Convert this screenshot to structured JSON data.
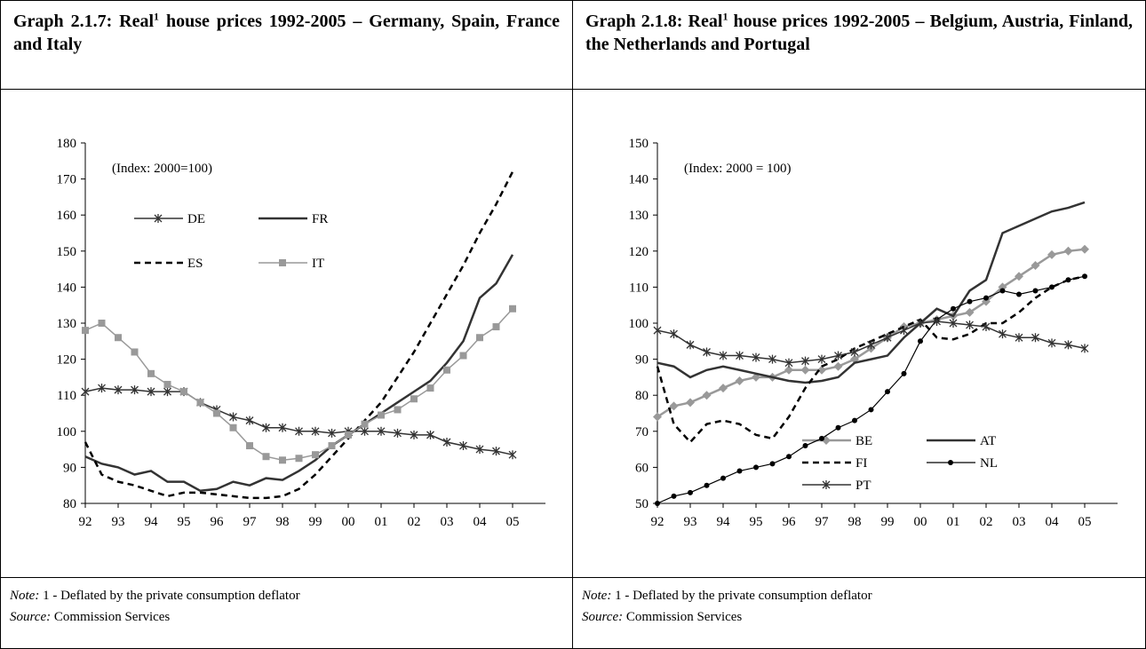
{
  "panels": [
    {
      "title": "Graph 2.1.7: Real",
      "title_sup": "1",
      "title_rest": " house prices 1992-2005 – Germany, Spain, France and Italy",
      "note_label": "Note:",
      "note": " 1 - Deflated by the private consumption deflator",
      "source_label": "Source:",
      "source": " Commission Services"
    },
    {
      "title": "Graph 2.1.8: Real",
      "title_sup": "1",
      "title_rest": " house prices 1992-2005 – Belgium, Austria, Finland, the Netherlands and Portugal",
      "note_label": "Note:",
      "note": " 1 - Deflated by the private consumption deflator",
      "source_label": "Source:",
      "source": " Commission Services"
    }
  ],
  "chart_data": [
    {
      "type": "line",
      "annotation": "(Index: 2000=100)",
      "legend": "upper left",
      "x": [
        1992,
        1992.5,
        1993,
        1993.5,
        1994,
        1994.5,
        1995,
        1995.5,
        1996,
        1996.5,
        1997,
        1997.5,
        1998,
        1998.5,
        1999,
        1999.5,
        2000,
        2000.5,
        2001,
        2001.5,
        2002,
        2002.5,
        2003,
        2003.5,
        2004,
        2004.5,
        2005
      ],
      "xlim": [
        1992,
        2006
      ],
      "xticks": [
        {
          "value": 1992,
          "label": "92"
        },
        {
          "value": 1993,
          "label": "93"
        },
        {
          "value": 1994,
          "label": "94"
        },
        {
          "value": 1995,
          "label": "95"
        },
        {
          "value": 1996,
          "label": "96"
        },
        {
          "value": 1997,
          "label": "97"
        },
        {
          "value": 1998,
          "label": "98"
        },
        {
          "value": 1999,
          "label": "99"
        },
        {
          "value": 2000,
          "label": "00"
        },
        {
          "value": 2001,
          "label": "01"
        },
        {
          "value": 2002,
          "label": "02"
        },
        {
          "value": 2003,
          "label": "03"
        },
        {
          "value": 2004,
          "label": "04"
        },
        {
          "value": 2005,
          "label": "05"
        }
      ],
      "ylim": [
        80,
        180
      ],
      "yticks": [
        80,
        90,
        100,
        110,
        120,
        130,
        140,
        150,
        160,
        170,
        180
      ],
      "series": [
        {
          "name": "DE",
          "color": "#333333",
          "width": 1.5,
          "marker": "asterisk",
          "values": [
            111,
            112,
            111.5,
            111.5,
            111,
            111,
            111,
            108,
            106,
            104,
            103,
            101,
            101,
            100,
            100,
            99.5,
            100,
            100,
            100,
            99.5,
            99,
            99,
            97,
            96,
            95,
            94.5,
            93.5
          ]
        },
        {
          "name": "FR",
          "color": "#333333",
          "width": 2.5,
          "marker": null,
          "values": [
            93,
            91,
            90,
            88,
            89,
            86,
            86,
            83.5,
            84,
            86,
            85,
            87,
            86.5,
            89,
            92,
            96,
            99,
            102,
            105,
            108,
            111,
            114,
            119,
            125,
            137,
            141,
            149
          ]
        },
        {
          "name": "ES",
          "color": "#000000",
          "width": 2.5,
          "dash": true,
          "marker": null,
          "values": [
            97,
            88,
            86,
            85,
            83.5,
            82,
            83,
            83,
            82.5,
            82,
            81.5,
            81.5,
            82,
            84,
            88,
            93,
            98,
            103,
            108,
            115,
            122,
            130,
            138,
            146,
            155,
            163,
            172
          ]
        },
        {
          "name": "IT",
          "color": "#999999",
          "width": 1.5,
          "marker": "square",
          "values": [
            128,
            130,
            126,
            122,
            116,
            113,
            111,
            108,
            105,
            101,
            96,
            93,
            92,
            92.5,
            93.5,
            96,
            99,
            102,
            104.5,
            106,
            109,
            112,
            117,
            121,
            126,
            129,
            134
          ]
        }
      ]
    },
    {
      "type": "line",
      "annotation": "(Index: 2000 = 100)",
      "legend": "lower right",
      "x": [
        1992,
        1992.5,
        1993,
        1993.5,
        1994,
        1994.5,
        1995,
        1995.5,
        1996,
        1996.5,
        1997,
        1997.5,
        1998,
        1998.5,
        1999,
        1999.5,
        2000,
        2000.5,
        2001,
        2001.5,
        2002,
        2002.5,
        2003,
        2003.5,
        2004,
        2004.5,
        2005
      ],
      "xlim": [
        1992,
        2006
      ],
      "xticks": [
        {
          "value": 1992,
          "label": "92"
        },
        {
          "value": 1993,
          "label": "93"
        },
        {
          "value": 1994,
          "label": "94"
        },
        {
          "value": 1995,
          "label": "95"
        },
        {
          "value": 1996,
          "label": "96"
        },
        {
          "value": 1997,
          "label": "97"
        },
        {
          "value": 1998,
          "label": "98"
        },
        {
          "value": 1999,
          "label": "99"
        },
        {
          "value": 2000,
          "label": "00"
        },
        {
          "value": 2001,
          "label": "01"
        },
        {
          "value": 2002,
          "label": "02"
        },
        {
          "value": 2003,
          "label": "03"
        },
        {
          "value": 2004,
          "label": "04"
        },
        {
          "value": 2005,
          "label": "05"
        }
      ],
      "ylim": [
        50,
        150
      ],
      "yticks": [
        50,
        60,
        70,
        80,
        90,
        100,
        110,
        120,
        130,
        140,
        150
      ],
      "series": [
        {
          "name": "BE",
          "color": "#999999",
          "width": 2.5,
          "marker": "diamond",
          "values": [
            74,
            77,
            78,
            80,
            82,
            84,
            85,
            85,
            87,
            87,
            87,
            88,
            90,
            93,
            96,
            99,
            100,
            101,
            102,
            103,
            106,
            110,
            113,
            116,
            119,
            120,
            120.5
          ]
        },
        {
          "name": "AT",
          "color": "#333333",
          "width": 2.5,
          "marker": null,
          "values": [
            89,
            88,
            85,
            87,
            88,
            87,
            86,
            85,
            84,
            83.5,
            84,
            85,
            89,
            90,
            91,
            96,
            100,
            104,
            102,
            109,
            112,
            125,
            127,
            129,
            131,
            132,
            133.5
          ]
        },
        {
          "name": "FI",
          "color": "#000000",
          "width": 2.5,
          "dash": true,
          "marker": null,
          "values": [
            88,
            72,
            67,
            72,
            73,
            72,
            69,
            68,
            74,
            82,
            88,
            90,
            93,
            95,
            97,
            99,
            101,
            96,
            95.5,
            97,
            100,
            100,
            103,
            107,
            110,
            112,
            113
          ]
        },
        {
          "name": "NL",
          "color": "#000000",
          "width": 1.2,
          "marker": "dot",
          "values": [
            50,
            52,
            53,
            55,
            57,
            59,
            60,
            61,
            63,
            66,
            68,
            71,
            73,
            76,
            81,
            86,
            95,
            101,
            104,
            106,
            107,
            109,
            108,
            109,
            110,
            112,
            113
          ]
        },
        {
          "name": "PT",
          "color": "#333333",
          "width": 1.5,
          "marker": "asterisk",
          "values": [
            98,
            97,
            94,
            92,
            91,
            91,
            90.5,
            90,
            89,
            89.5,
            90,
            91,
            92,
            94,
            96,
            98,
            100,
            100.5,
            100,
            99.5,
            99,
            97,
            96,
            96,
            94.5,
            94,
            93
          ]
        }
      ]
    }
  ]
}
